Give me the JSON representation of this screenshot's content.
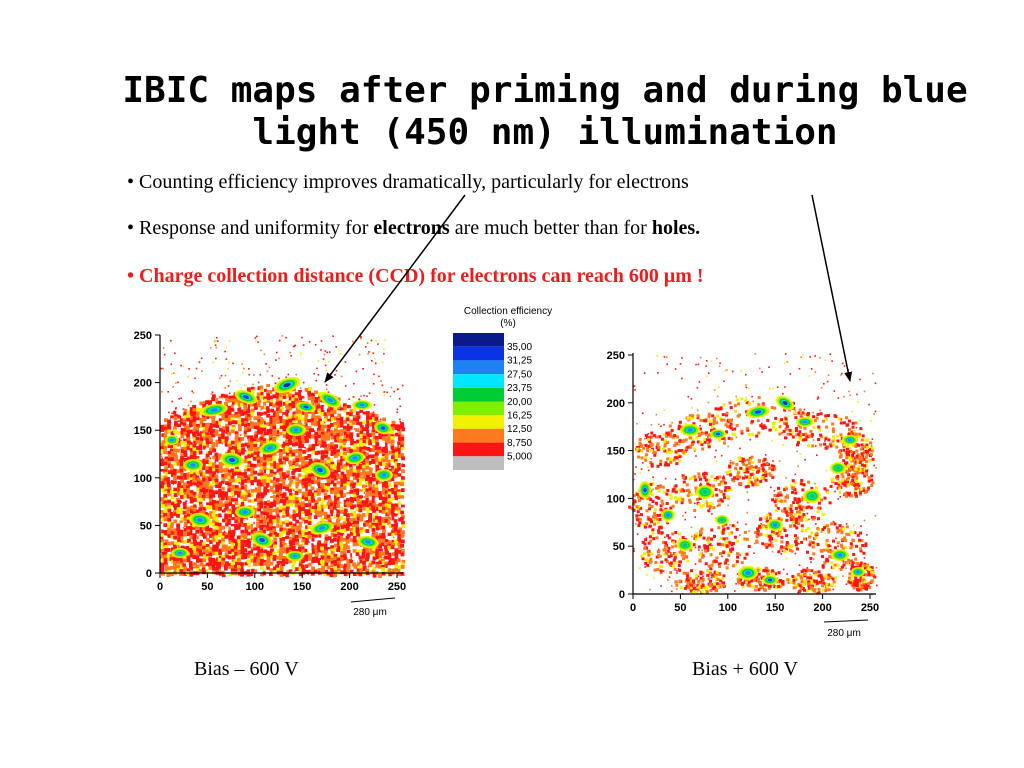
{
  "title": {
    "line1": "IBIC maps after priming and during blue",
    "line2": "light  (450 nm) illumination"
  },
  "bullets": {
    "marker": "•",
    "b1": "Counting efficiency improves dramatically, particularly for electrons",
    "b2_pre": "Response and uniformity for ",
    "b2_bold1": "electrons",
    "b2_mid": " are much better than for ",
    "b2_bold2": "holes.",
    "b3": "Charge collection distance (CCD) for electrons can reach 600 μm !"
  },
  "legend": {
    "title_line1": "Collection efficiency",
    "title_line2": "(%)",
    "levels": [
      "35,00",
      "31,25",
      "27,50",
      "23,75",
      "20,00",
      "16,25",
      "12,50",
      "8,750",
      "5,000"
    ],
    "colors": [
      "#0a1a8c",
      "#0a32e6",
      "#1e82f0",
      "#00e6ff",
      "#00cc33",
      "#80f000",
      "#f0f000",
      "#ff7a1e",
      "#ff1414",
      "#bebebe"
    ]
  },
  "maps": {
    "left": {
      "bias_label": "Bias – 600 V",
      "y_ticks": [
        "250",
        "200",
        "150",
        "100",
        "50",
        "0"
      ],
      "x_ticks": [
        "0",
        "50",
        "100",
        "150",
        "200",
        "250"
      ],
      "scale_label": "280 μm"
    },
    "right": {
      "bias_label": "Bias + 600 V",
      "y_ticks": [
        "250",
        "200",
        "150",
        "100",
        "50",
        "0"
      ],
      "x_ticks": [
        "0",
        "50",
        "100",
        "150",
        "200",
        "250"
      ],
      "scale_label": "280 μm"
    }
  }
}
